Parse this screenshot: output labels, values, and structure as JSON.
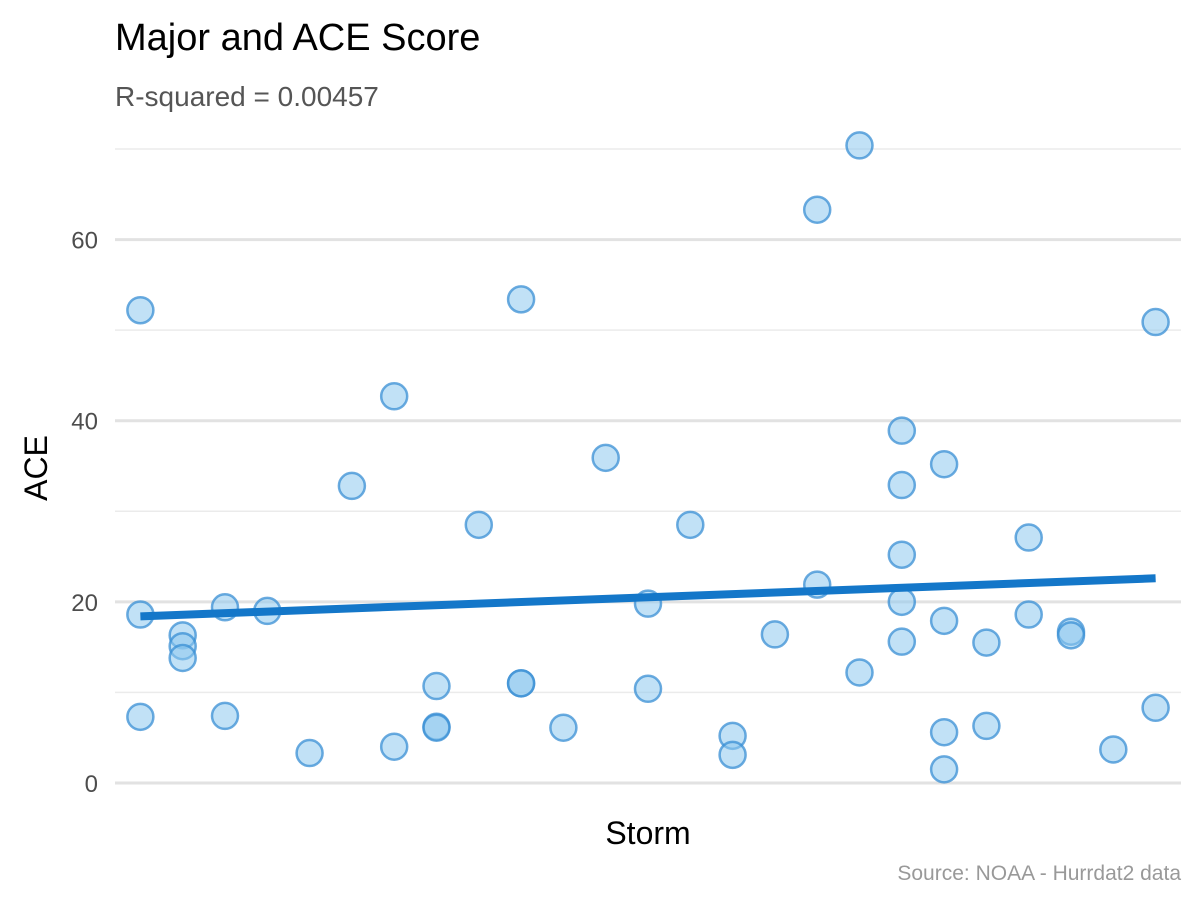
{
  "chart_data": {
    "type": "scatter",
    "title": "Major and ACE Score",
    "subtitle": "R-squared =  0.00457",
    "xlabel": "Storm",
    "ylabel": "ACE",
    "caption": "Source: NOAA - Hurrdat2 data",
    "ylim": [
      -1,
      71
    ],
    "xlim": [
      0.4,
      25.6
    ],
    "y_ticks": [
      0,
      20,
      40,
      60
    ],
    "grid": "horizontal",
    "point_color": "#8ec8ee",
    "point_stroke": "#3a8fd4",
    "trend_color": "#1477c9",
    "trend_line": {
      "y_start": 18.4,
      "y_end": 22.6
    },
    "points": [
      {
        "x": 1,
        "y": 52.2
      },
      {
        "x": 1,
        "y": 18.6
      },
      {
        "x": 1,
        "y": 7.3
      },
      {
        "x": 2,
        "y": 16.3
      },
      {
        "x": 2,
        "y": 15.1
      },
      {
        "x": 2,
        "y": 13.8
      },
      {
        "x": 3,
        "y": 19.4
      },
      {
        "x": 3,
        "y": 7.4
      },
      {
        "x": 4,
        "y": 19.0
      },
      {
        "x": 5,
        "y": 3.3
      },
      {
        "x": 6,
        "y": 32.8
      },
      {
        "x": 7,
        "y": 42.7
      },
      {
        "x": 7,
        "y": 4.0
      },
      {
        "x": 8,
        "y": 10.7
      },
      {
        "x": 8,
        "y": 6.2
      },
      {
        "x": 8,
        "y": 6.1
      },
      {
        "x": 9,
        "y": 28.5
      },
      {
        "x": 10,
        "y": 53.4
      },
      {
        "x": 10,
        "y": 11.0
      },
      {
        "x": 10,
        "y": 11.0
      },
      {
        "x": 11,
        "y": 6.1
      },
      {
        "x": 12,
        "y": 35.9
      },
      {
        "x": 13,
        "y": 19.8
      },
      {
        "x": 13,
        "y": 10.4
      },
      {
        "x": 14,
        "y": 28.5
      },
      {
        "x": 15,
        "y": 5.2
      },
      {
        "x": 15,
        "y": 3.1
      },
      {
        "x": 16,
        "y": 16.4
      },
      {
        "x": 17,
        "y": 63.3
      },
      {
        "x": 17,
        "y": 21.9
      },
      {
        "x": 18,
        "y": 70.4
      },
      {
        "x": 18,
        "y": 12.2
      },
      {
        "x": 19,
        "y": 38.9
      },
      {
        "x": 19,
        "y": 32.9
      },
      {
        "x": 19,
        "y": 25.2
      },
      {
        "x": 19,
        "y": 20.0
      },
      {
        "x": 19,
        "y": 15.6
      },
      {
        "x": 20,
        "y": 35.2
      },
      {
        "x": 20,
        "y": 17.9
      },
      {
        "x": 20,
        "y": 5.6
      },
      {
        "x": 20,
        "y": 1.5
      },
      {
        "x": 21,
        "y": 15.5
      },
      {
        "x": 21,
        "y": 6.3
      },
      {
        "x": 22,
        "y": 27.1
      },
      {
        "x": 22,
        "y": 18.6
      },
      {
        "x": 23,
        "y": 16.7
      },
      {
        "x": 23,
        "y": 16.3
      },
      {
        "x": 24,
        "y": 3.7
      },
      {
        "x": 25,
        "y": 50.9
      },
      {
        "x": 25,
        "y": 8.3
      }
    ]
  }
}
